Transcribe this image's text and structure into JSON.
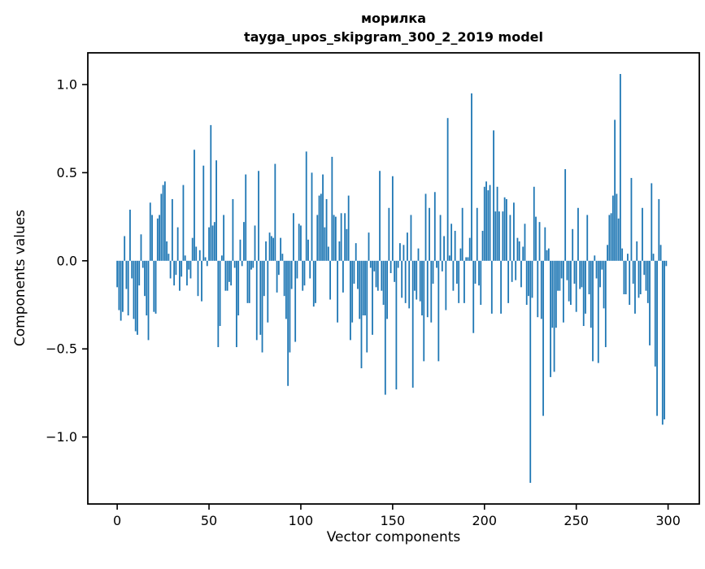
{
  "chart_data": {
    "type": "bar",
    "title": "морилка",
    "subtitle": "tayga_upos_skipgram_300_2_2019 model",
    "xlabel": "Vector components",
    "ylabel": "Components values",
    "bar_color": "#1f77b4",
    "background_color": "#ffffff",
    "spine_color": "#000000",
    "grid": "off",
    "legend": "none",
    "n_components": 300,
    "x_ticks": [
      0,
      50,
      100,
      150,
      200,
      250,
      300
    ],
    "y_ticks": [
      1.0,
      0.5,
      0.0,
      -0.5,
      -1.0
    ],
    "xlim": [
      -16,
      317
    ],
    "ylim": [
      -1.38,
      1.18
    ],
    "values": [
      -0.15,
      -0.28,
      -0.34,
      -0.29,
      0.14,
      -0.16,
      -0.31,
      0.29,
      -0.1,
      -0.33,
      -0.4,
      -0.42,
      -0.14,
      0.15,
      -0.04,
      -0.2,
      -0.31,
      -0.45,
      0.33,
      0.26,
      -0.29,
      -0.3,
      0.24,
      0.26,
      0.38,
      0.43,
      0.45,
      0.11,
      0.04,
      -0.1,
      0.35,
      -0.14,
      -0.08,
      0.19,
      -0.17,
      -0.09,
      0.43,
      0.03,
      -0.14,
      -0.05,
      -0.1,
      0.13,
      0.63,
      0.08,
      -0.2,
      0.06,
      -0.23,
      0.54,
      0.02,
      -0.03,
      0.19,
      0.77,
      0.2,
      0.22,
      0.57,
      -0.49,
      -0.37,
      0.03,
      0.26,
      -0.17,
      -0.17,
      -0.12,
      -0.14,
      0.35,
      -0.04,
      -0.49,
      -0.31,
      0.12,
      -0.03,
      0.22,
      0.49,
      -0.24,
      -0.24,
      -0.05,
      -0.04,
      0.2,
      -0.45,
      0.51,
      -0.42,
      -0.52,
      -0.2,
      0.11,
      -0.35,
      0.16,
      0.14,
      0.13,
      0.55,
      -0.18,
      -0.08,
      0.13,
      0.04,
      -0.2,
      -0.33,
      -0.71,
      -0.52,
      -0.16,
      0.27,
      -0.46,
      -0.1,
      0.21,
      0.2,
      -0.17,
      -0.14,
      0.62,
      0.12,
      -0.1,
      0.5,
      -0.26,
      -0.24,
      0.26,
      0.37,
      0.38,
      0.49,
      0.19,
      0.35,
      0.08,
      -0.22,
      0.59,
      0.26,
      0.25,
      -0.35,
      0.11,
      0.27,
      -0.18,
      0.27,
      0.18,
      0.37,
      -0.45,
      -0.35,
      -0.13,
      0.1,
      -0.16,
      -0.33,
      -0.61,
      -0.31,
      -0.31,
      -0.52,
      0.16,
      -0.04,
      -0.42,
      -0.06,
      -0.15,
      -0.17,
      0.51,
      -0.17,
      -0.25,
      -0.76,
      -0.33,
      0.3,
      -0.07,
      0.48,
      -0.12,
      -0.73,
      -0.04,
      0.1,
      -0.21,
      0.09,
      -0.24,
      0.16,
      -0.27,
      0.26,
      -0.72,
      -0.17,
      -0.22,
      0.07,
      -0.23,
      -0.31,
      -0.57,
      0.38,
      -0.32,
      0.3,
      -0.35,
      -0.13,
      0.39,
      -0.04,
      -0.57,
      0.26,
      -0.06,
      0.14,
      -0.28,
      0.81,
      0.03,
      0.21,
      -0.17,
      0.17,
      -0.13,
      -0.24,
      0.07,
      0.3,
      -0.24,
      0.02,
      0.02,
      0.13,
      0.95,
      -0.41,
      -0.13,
      0.3,
      -0.14,
      -0.25,
      0.17,
      0.42,
      0.45,
      0.4,
      0.43,
      -0.3,
      0.74,
      0.28,
      0.42,
      0.28,
      -0.3,
      0.28,
      0.36,
      0.35,
      -0.24,
      0.26,
      -0.12,
      0.33,
      -0.11,
      0.13,
      0.11,
      -0.15,
      0.08,
      0.21,
      -0.25,
      -0.2,
      -1.26,
      -0.21,
      0.42,
      0.25,
      -0.32,
      0.22,
      -0.33,
      -0.88,
      0.19,
      0.06,
      0.07,
      -0.66,
      -0.38,
      -0.63,
      -0.38,
      -0.17,
      -0.17,
      -0.1,
      -0.35,
      0.52,
      -0.11,
      -0.23,
      -0.25,
      0.18,
      -0.13,
      -0.29,
      0.3,
      -0.16,
      -0.15,
      -0.37,
      -0.3,
      0.26,
      -0.19,
      -0.38,
      -0.57,
      0.03,
      -0.1,
      -0.58,
      -0.15,
      -0.05,
      -0.27,
      -0.49,
      0.09,
      0.26,
      0.27,
      0.37,
      0.8,
      0.38,
      0.24,
      1.06,
      0.07,
      -0.19,
      -0.19,
      0.04,
      -0.25,
      0.47,
      -0.13,
      -0.3,
      0.11,
      -0.21,
      -0.19,
      0.3,
      -0.08,
      -0.17,
      -0.24,
      -0.48,
      0.44,
      0.04,
      -0.6,
      -0.88,
      0.35,
      0.09,
      -0.93,
      -0.9,
      -0.03
    ]
  }
}
